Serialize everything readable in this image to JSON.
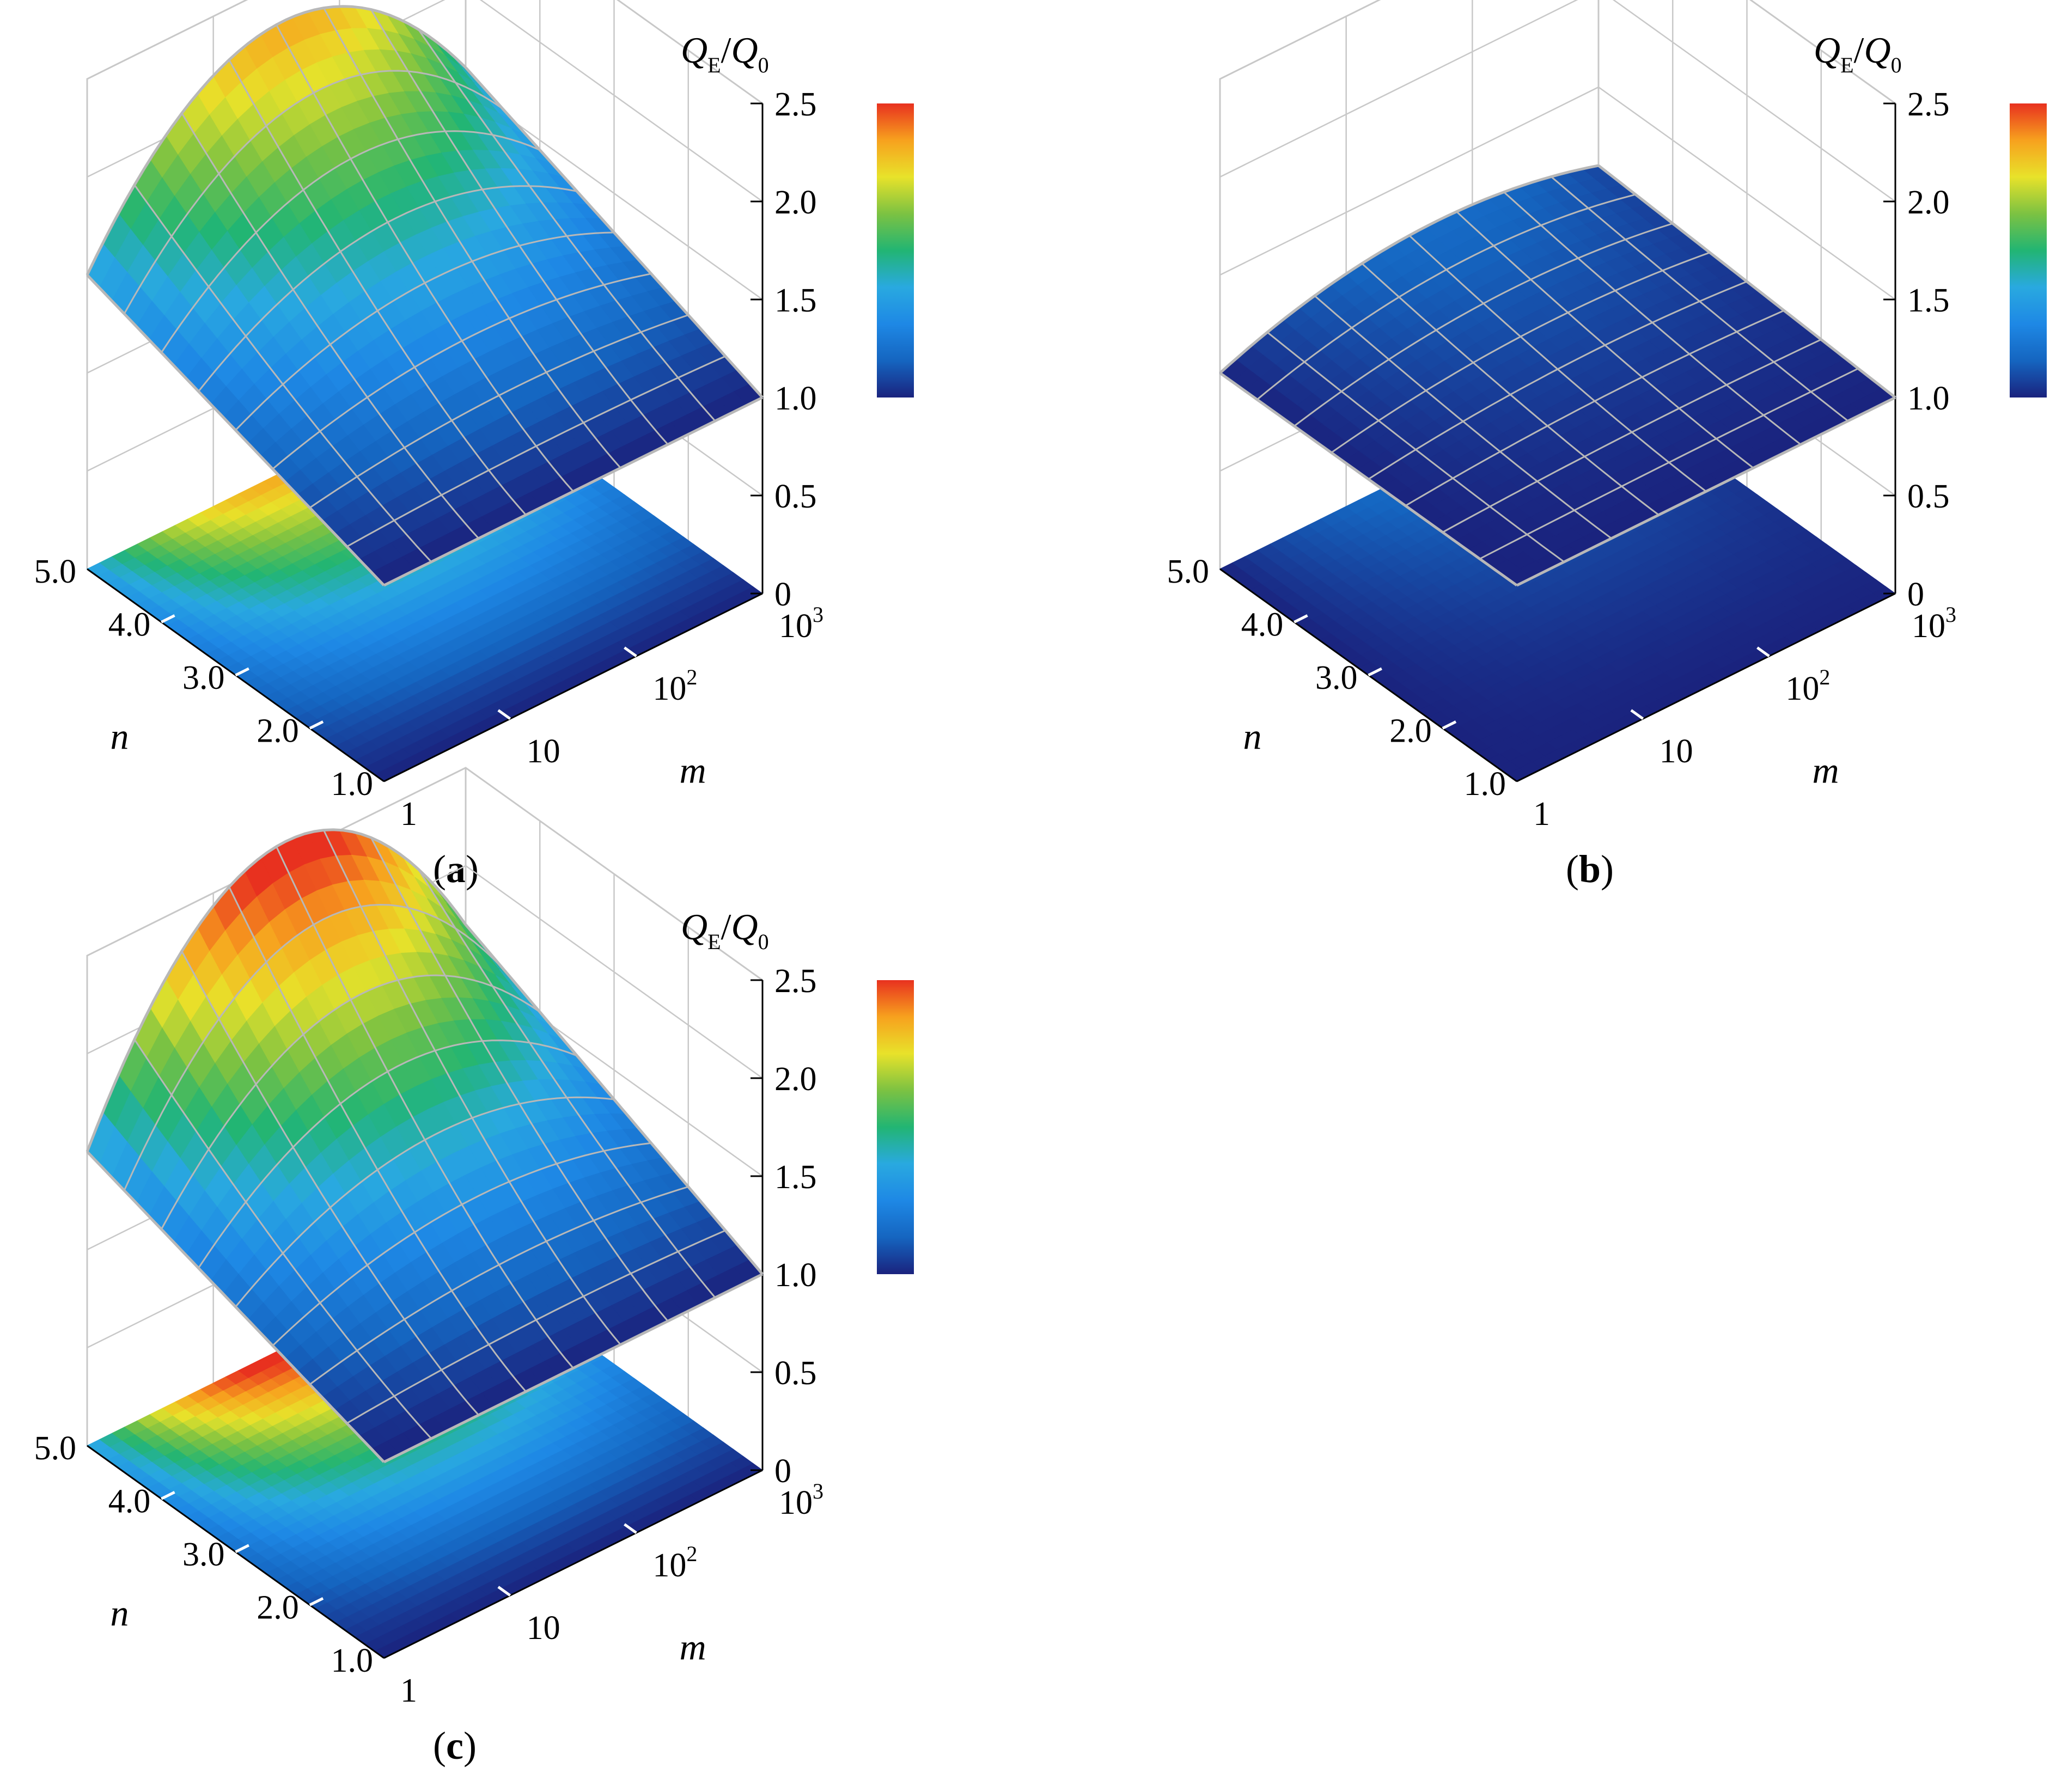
{
  "figure": {
    "panels": [
      {
        "caption": {
          "open": "(",
          "letter": "a",
          "close": ")"
        }
      },
      {
        "caption": {
          "open": "(",
          "letter": "b",
          "close": ")"
        }
      },
      {
        "caption": {
          "open": "(",
          "letter": "c",
          "close": ")"
        }
      }
    ]
  },
  "colorbar": {
    "stops": [
      "#1a237e",
      "#1565c0",
      "#1e88e5",
      "#29a9e0",
      "#22b573",
      "#7cc242",
      "#e8e22a",
      "#f7a11e",
      "#e8311f"
    ],
    "range": [
      1.0,
      2.5
    ]
  },
  "chart_data": [
    {
      "type": "surface",
      "panel": "a",
      "title": "",
      "xlabel": "m",
      "ylabel": "n",
      "zlabel": {
        "base": "Q",
        "sub1": "E",
        "slash": "/",
        "base2": "Q",
        "sub2": "0"
      },
      "m_ticks": [
        {
          "base": "1",
          "exp": ""
        },
        {
          "base": "10",
          "exp": ""
        },
        {
          "base": "10",
          "exp": "2"
        },
        {
          "base": "10",
          "exp": "3"
        }
      ],
      "n_ticks": [
        "1.0",
        "2.0",
        "3.0",
        "4.0",
        "5.0"
      ],
      "z_ticks": [
        "0",
        "0.5",
        "1.0",
        "1.5",
        "2.0",
        "2.5"
      ],
      "colorbar_ticks": [
        "1.0",
        "1.5",
        "2.0",
        "2.5"
      ],
      "zlim": [
        0,
        2.5
      ],
      "m_log10": [
        0,
        3
      ],
      "n_range": [
        1.0,
        5.0
      ],
      "projection_on_floor": true,
      "grid": true,
      "z_corners": {
        "m1_n1": 1.0,
        "m1_n5": 1.5,
        "m1000_n1": 1.0,
        "m1000_n5": 1.6,
        "peak": 2.2
      }
    },
    {
      "type": "surface",
      "panel": "b",
      "title": "",
      "xlabel": "m",
      "ylabel": "n",
      "zlabel": {
        "base": "Q",
        "sub1": "E",
        "slash": "/",
        "base2": "Q",
        "sub2": "0"
      },
      "m_ticks": [
        {
          "base": "1",
          "exp": ""
        },
        {
          "base": "10",
          "exp": ""
        },
        {
          "base": "10",
          "exp": "2"
        },
        {
          "base": "10",
          "exp": "3"
        }
      ],
      "n_ticks": [
        "1.0",
        "2.0",
        "3.0",
        "4.0",
        "5.0"
      ],
      "z_ticks": [
        "0",
        "0.5",
        "1.0",
        "1.5",
        "2.0",
        "2.5"
      ],
      "colorbar_ticks": [
        "1.0",
        "1.5",
        "2.0",
        "2.5"
      ],
      "zlim": [
        0,
        2.5
      ],
      "m_log10": [
        0,
        3
      ],
      "n_range": [
        1.0,
        5.0
      ],
      "projection_on_floor": true,
      "grid": true,
      "z_corners": {
        "m1_n1": 1.0,
        "m1_n5": 1.0,
        "m1000_n1": 1.0,
        "m1000_n5": 1.1,
        "peak": 1.2
      }
    },
    {
      "type": "surface",
      "panel": "c",
      "title": "",
      "xlabel": "m",
      "ylabel": "n",
      "zlabel": {
        "base": "Q",
        "sub1": "E",
        "slash": "/",
        "base2": "Q",
        "sub2": "0"
      },
      "m_ticks": [
        {
          "base": "1",
          "exp": ""
        },
        {
          "base": "10",
          "exp": ""
        },
        {
          "base": "10",
          "exp": "2"
        },
        {
          "base": "10",
          "exp": "3"
        }
      ],
      "n_ticks": [
        "1.0",
        "2.0",
        "3.0",
        "4.0",
        "5.0"
      ],
      "z_ticks": [
        "0",
        "0.5",
        "1.0",
        "1.5",
        "2.0",
        "2.5"
      ],
      "colorbar_ticks": [
        "1.0",
        "1.5",
        "2.0",
        "2.5"
      ],
      "zlim": [
        0,
        2.5
      ],
      "m_log10": [
        0,
        3
      ],
      "n_range": [
        1.0,
        5.0
      ],
      "projection_on_floor": true,
      "grid": true,
      "z_corners": {
        "m1_n1": 1.0,
        "m1_n5": 1.5,
        "m1000_n1": 1.0,
        "m1000_n5": 1.7,
        "peak": 2.45
      }
    }
  ]
}
